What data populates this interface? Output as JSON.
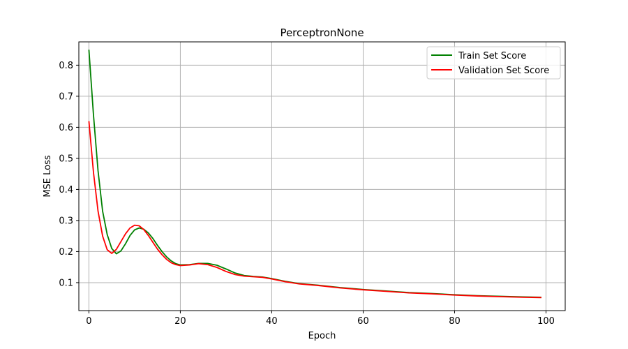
{
  "chart_data": {
    "type": "line",
    "title": "PerceptronNone",
    "xlabel": "Epoch",
    "ylabel": "MSE Loss",
    "xlim": [
      -2.2,
      104.2
    ],
    "ylim": [
      0.01,
      0.875
    ],
    "xticks": [
      0,
      20,
      40,
      60,
      80,
      100
    ],
    "yticks": [
      0.1,
      0.2,
      0.3,
      0.4,
      0.5,
      0.6,
      0.7,
      0.8
    ],
    "grid": true,
    "legend_position": "top-right",
    "series": [
      {
        "name": "Train Set Score",
        "color": "#008000",
        "points": [
          [
            0,
            0.85
          ],
          [
            1,
            0.64
          ],
          [
            2,
            0.46
          ],
          [
            3,
            0.33
          ],
          [
            4,
            0.255
          ],
          [
            5,
            0.21
          ],
          [
            6,
            0.193
          ],
          [
            7,
            0.202
          ],
          [
            8,
            0.225
          ],
          [
            9,
            0.252
          ],
          [
            10,
            0.27
          ],
          [
            11,
            0.276
          ],
          [
            12,
            0.272
          ],
          [
            13,
            0.26
          ],
          [
            14,
            0.242
          ],
          [
            15,
            0.22
          ],
          [
            16,
            0.2
          ],
          [
            17,
            0.183
          ],
          [
            18,
            0.17
          ],
          [
            19,
            0.161
          ],
          [
            20,
            0.157
          ],
          [
            22,
            0.158
          ],
          [
            24,
            0.162
          ],
          [
            26,
            0.162
          ],
          [
            28,
            0.156
          ],
          [
            30,
            0.144
          ],
          [
            32,
            0.131
          ],
          [
            34,
            0.123
          ],
          [
            36,
            0.12
          ],
          [
            38,
            0.118
          ],
          [
            40,
            0.113
          ],
          [
            43,
            0.104
          ],
          [
            46,
            0.097
          ],
          [
            50,
            0.092
          ],
          [
            55,
            0.084
          ],
          [
            60,
            0.078
          ],
          [
            65,
            0.073
          ],
          [
            70,
            0.068
          ],
          [
            75,
            0.065
          ],
          [
            80,
            0.061
          ],
          [
            85,
            0.058
          ],
          [
            90,
            0.056
          ],
          [
            95,
            0.054
          ],
          [
            99,
            0.053
          ]
        ]
      },
      {
        "name": "Validation Set Score",
        "color": "#ff0000",
        "points": [
          [
            0,
            0.62
          ],
          [
            1,
            0.455
          ],
          [
            2,
            0.33
          ],
          [
            3,
            0.25
          ],
          [
            4,
            0.206
          ],
          [
            5,
            0.194
          ],
          [
            6,
            0.207
          ],
          [
            7,
            0.232
          ],
          [
            8,
            0.257
          ],
          [
            9,
            0.276
          ],
          [
            10,
            0.285
          ],
          [
            11,
            0.283
          ],
          [
            12,
            0.271
          ],
          [
            13,
            0.252
          ],
          [
            14,
            0.23
          ],
          [
            15,
            0.208
          ],
          [
            16,
            0.19
          ],
          [
            17,
            0.175
          ],
          [
            18,
            0.164
          ],
          [
            19,
            0.158
          ],
          [
            20,
            0.155
          ],
          [
            22,
            0.157
          ],
          [
            24,
            0.161
          ],
          [
            26,
            0.158
          ],
          [
            28,
            0.149
          ],
          [
            30,
            0.136
          ],
          [
            32,
            0.126
          ],
          [
            34,
            0.121
          ],
          [
            36,
            0.119
          ],
          [
            38,
            0.117
          ],
          [
            40,
            0.112
          ],
          [
            43,
            0.103
          ],
          [
            46,
            0.096
          ],
          [
            50,
            0.091
          ],
          [
            55,
            0.083
          ],
          [
            60,
            0.077
          ],
          [
            65,
            0.072
          ],
          [
            70,
            0.067
          ],
          [
            75,
            0.064
          ],
          [
            80,
            0.06
          ],
          [
            85,
            0.057
          ],
          [
            90,
            0.055
          ],
          [
            95,
            0.053
          ],
          [
            99,
            0.052
          ]
        ]
      }
    ]
  }
}
